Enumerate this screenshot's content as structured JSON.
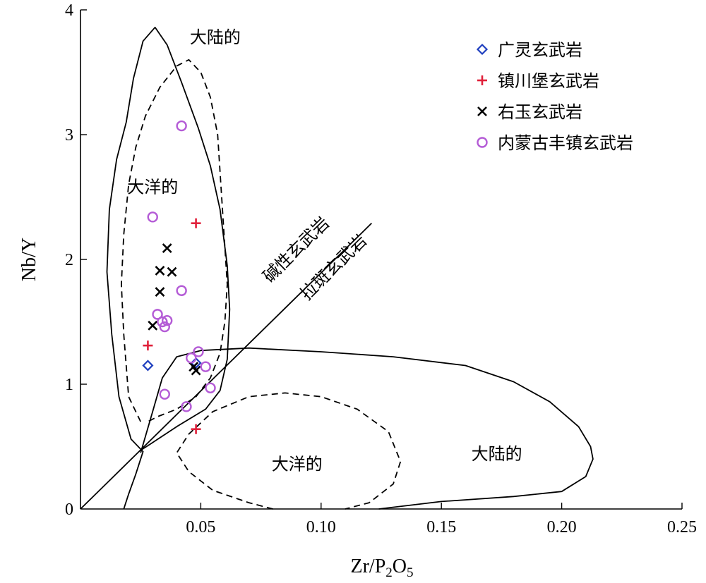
{
  "chart_data": {
    "type": "scatter",
    "title": "",
    "xlabel": "Zr/P",
    "xlabel_sub1": "2",
    "xlabel_mid": "O",
    "xlabel_sub2": "5",
    "ylabel": "Nb/Y",
    "xlim": [
      0,
      0.25
    ],
    "ylim": [
      0,
      4
    ],
    "x_ticks": [
      {
        "value": 0.05,
        "label": "0.05"
      },
      {
        "value": 0.1,
        "label": "0.10"
      },
      {
        "value": 0.15,
        "label": "0.15"
      },
      {
        "value": 0.2,
        "label": "0.20"
      },
      {
        "value": 0.25,
        "label": "0.25"
      }
    ],
    "y_ticks": [
      {
        "value": 0,
        "label": "0"
      },
      {
        "value": 1,
        "label": "1"
      },
      {
        "value": 2,
        "label": "2"
      },
      {
        "value": 3,
        "label": "3"
      },
      {
        "value": 4,
        "label": "4"
      }
    ],
    "legend_position": "top-right",
    "series": [
      {
        "name": "广灵玄武岩",
        "marker": "diamond",
        "color": "#1f3fbf",
        "points": [
          [
            0.028,
            1.15
          ],
          [
            0.048,
            1.17
          ]
        ]
      },
      {
        "name": "镇川堡玄武岩",
        "marker": "plus",
        "color": "#e0203a",
        "points": [
          [
            0.028,
            1.31
          ],
          [
            0.048,
            2.29
          ],
          [
            0.048,
            0.64
          ]
        ]
      },
      {
        "name": "右玉玄武岩",
        "marker": "x",
        "color": "#000000",
        "points": [
          [
            0.036,
            2.09
          ],
          [
            0.033,
            1.91
          ],
          [
            0.038,
            1.9
          ],
          [
            0.033,
            1.74
          ],
          [
            0.03,
            1.47
          ],
          [
            0.048,
            1.11
          ],
          [
            0.047,
            1.14
          ]
        ]
      },
      {
        "name": "内蒙古丰镇玄武岩",
        "marker": "circle",
        "color": "#b45bd6",
        "points": [
          [
            0.042,
            3.07
          ],
          [
            0.03,
            2.34
          ],
          [
            0.042,
            1.75
          ],
          [
            0.032,
            1.56
          ],
          [
            0.034,
            1.5
          ],
          [
            0.036,
            1.51
          ],
          [
            0.035,
            1.46
          ],
          [
            0.046,
            1.21
          ],
          [
            0.049,
            1.26
          ],
          [
            0.052,
            1.14
          ],
          [
            0.054,
            0.97
          ],
          [
            0.035,
            0.92
          ],
          [
            0.044,
            0.82
          ]
        ]
      }
    ],
    "boundary_line": {
      "from": [
        0,
        0
      ],
      "to": [
        0.121,
        2.29
      ]
    },
    "boundary_labels": [
      "碱性玄武岩",
      "拉斑玄武岩"
    ],
    "fields": [
      {
        "label": "大陆的",
        "style": "solid",
        "label_at": [
          0.056,
          3.78
        ],
        "path": [
          [
            0.018,
            0
          ],
          [
            0.02,
            0.12
          ],
          [
            0.023,
            0.28
          ],
          [
            0.025,
            0.4
          ],
          [
            0.026,
            0.46
          ],
          [
            0.021,
            0.56
          ],
          [
            0.016,
            0.9
          ],
          [
            0.013,
            1.4
          ],
          [
            0.011,
            1.9
          ],
          [
            0.012,
            2.4
          ],
          [
            0.015,
            2.8
          ],
          [
            0.019,
            3.1
          ],
          [
            0.022,
            3.45
          ],
          [
            0.026,
            3.75
          ],
          [
            0.031,
            3.86
          ],
          [
            0.036,
            3.72
          ],
          [
            0.042,
            3.42
          ],
          [
            0.049,
            3.05
          ],
          [
            0.054,
            2.75
          ],
          [
            0.058,
            2.4
          ],
          [
            0.061,
            1.95
          ],
          [
            0.062,
            1.6
          ],
          [
            0.061,
            1.2
          ],
          [
            0.058,
            0.95
          ],
          [
            0.052,
            0.8
          ],
          [
            0.04,
            0.66
          ],
          [
            0.029,
            0.52
          ],
          [
            0.025,
            0.47
          ]
        ]
      },
      {
        "label": "大洋的",
        "style": "dashed",
        "label_at": [
          0.03,
          2.58
        ],
        "path": [
          [
            0.025,
            0.7
          ],
          [
            0.02,
            0.9
          ],
          [
            0.018,
            1.4
          ],
          [
            0.017,
            1.8
          ],
          [
            0.018,
            2.2
          ],
          [
            0.02,
            2.6
          ],
          [
            0.023,
            2.9
          ],
          [
            0.027,
            3.15
          ],
          [
            0.033,
            3.38
          ],
          [
            0.04,
            3.55
          ],
          [
            0.045,
            3.6
          ],
          [
            0.05,
            3.5
          ],
          [
            0.054,
            3.3
          ],
          [
            0.057,
            3.0
          ],
          [
            0.058,
            2.7
          ],
          [
            0.059,
            2.4
          ],
          [
            0.06,
            2.1
          ],
          [
            0.061,
            1.8
          ],
          [
            0.06,
            1.5
          ],
          [
            0.058,
            1.25
          ],
          [
            0.054,
            1.05
          ],
          [
            0.048,
            0.9
          ],
          [
            0.04,
            0.8
          ],
          [
            0.032,
            0.74
          ],
          [
            0.028,
            0.7
          ]
        ]
      },
      {
        "label": "大陆的",
        "style": "solid",
        "label_at": [
          0.173,
          0.44
        ],
        "path": [
          [
            0.025,
            0.45
          ],
          [
            0.03,
            0.78
          ],
          [
            0.034,
            1.05
          ],
          [
            0.04,
            1.22
          ],
          [
            0.05,
            1.27
          ],
          [
            0.07,
            1.29
          ],
          [
            0.1,
            1.26
          ],
          [
            0.13,
            1.22
          ],
          [
            0.16,
            1.15
          ],
          [
            0.18,
            1.02
          ],
          [
            0.195,
            0.86
          ],
          [
            0.207,
            0.66
          ],
          [
            0.212,
            0.5
          ],
          [
            0.213,
            0.4
          ],
          [
            0.21,
            0.26
          ],
          [
            0.2,
            0.14
          ],
          [
            0.18,
            0.1
          ],
          [
            0.15,
            0.06
          ],
          [
            0.124,
            0.0
          ]
        ]
      },
      {
        "label": "大洋的",
        "style": "dashed",
        "label_at": [
          0.09,
          0.36
        ],
        "path": [
          [
            0.08,
            0
          ],
          [
            0.07,
            0.05
          ],
          [
            0.055,
            0.15
          ],
          [
            0.045,
            0.3
          ],
          [
            0.04,
            0.45
          ],
          [
            0.045,
            0.6
          ],
          [
            0.055,
            0.78
          ],
          [
            0.07,
            0.9
          ],
          [
            0.085,
            0.93
          ],
          [
            0.1,
            0.9
          ],
          [
            0.115,
            0.8
          ],
          [
            0.128,
            0.62
          ],
          [
            0.133,
            0.38
          ],
          [
            0.13,
            0.2
          ],
          [
            0.12,
            0.05
          ],
          [
            0.11,
            0.0
          ]
        ]
      }
    ]
  }
}
